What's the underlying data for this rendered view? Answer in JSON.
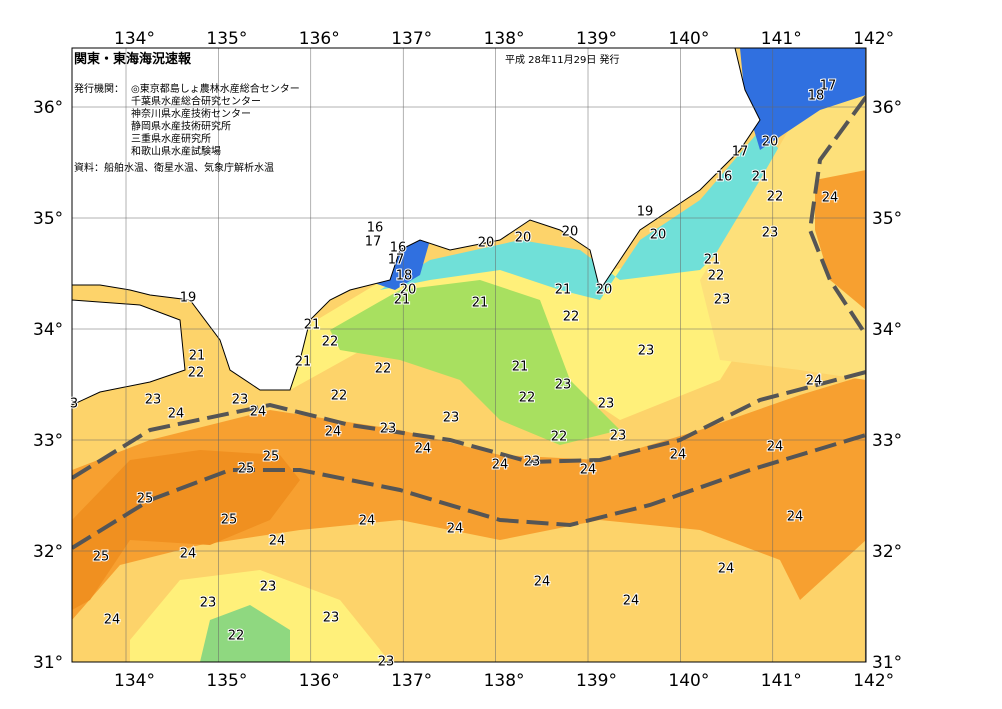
{
  "header": {
    "title": "関東・東海海況速報",
    "date": "平成 28年11月29日 発行",
    "issuers_label": "発行機関：",
    "issuers": [
      "◎東京都島しょ農林水産総合センター",
      "千葉県水産総合研究センター",
      "神奈川県水産技術センター",
      "静岡県水産技術研究所",
      "三重県水産研究所",
      "和歌山県水産試験場"
    ],
    "source": "資料：船舶水温、衛星水温、気象庁解析水温"
  },
  "map": {
    "lon_ticks": [
      "134°",
      "135°",
      "136°",
      "137°",
      "138°",
      "139°",
      "140°",
      "141°",
      "142°"
    ],
    "lat_ticks": [
      "36°",
      "35°",
      "34°",
      "33°",
      "32°",
      "31°"
    ],
    "isotherm_labels": [
      "17",
      "18",
      "20",
      "17",
      "16",
      "21",
      "22",
      "24",
      "19",
      "20",
      "23",
      "21",
      "22",
      "23",
      "16",
      "17",
      "16",
      "17",
      "18",
      "20",
      "21",
      "20",
      "20",
      "20",
      "21",
      "20",
      "21",
      "22",
      "21",
      "22",
      "19",
      "21",
      "22",
      "21",
      "22",
      "21",
      "23",
      "23",
      "22",
      "22",
      "23",
      "23",
      "23",
      "24",
      "24",
      "23",
      "24",
      "23",
      "22",
      "23",
      "24",
      "24",
      "23",
      "24",
      "24",
      "24",
      "24",
      "25",
      "25",
      "25",
      "25",
      "24",
      "24",
      "24",
      "24",
      "25",
      "24",
      "24",
      "24",
      "23",
      "23",
      "24",
      "24",
      "23",
      "22",
      "23",
      "3"
    ]
  }
}
